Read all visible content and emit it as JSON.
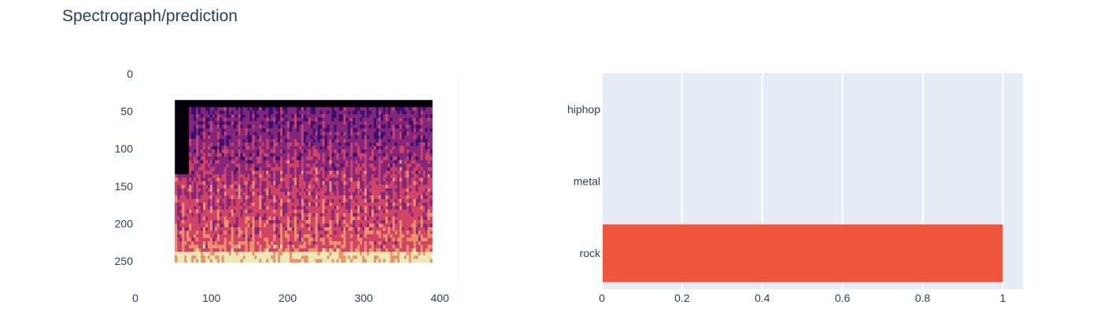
{
  "title": "Spectrograph/prediction",
  "chart_data": [
    {
      "type": "heatmap",
      "description_of_content": "",
      "xlim": [
        0,
        400
      ],
      "ylim": [
        0,
        275
      ],
      "x_ticks": [
        "0",
        "100",
        "200",
        "300",
        "400"
      ],
      "y_ticks": [
        "0",
        "50",
        "100",
        "150",
        "200",
        "250"
      ],
      "image_extent": {
        "x": [
          52,
          390
        ],
        "y": [
          35,
          252
        ]
      },
      "colormap": [
        "#000004",
        "#3b0f70",
        "#8c2981",
        "#de4968",
        "#fe9f6d",
        "#fcfdbf"
      ]
    },
    {
      "type": "bar",
      "orientation": "horizontal",
      "categories": [
        "rock",
        "metal",
        "hiphop"
      ],
      "values": [
        1.0,
        0.0,
        0.0
      ],
      "xlim": [
        0,
        1.05
      ],
      "x_ticks": [
        "0",
        "0.2",
        "0.4",
        "0.6",
        "0.8",
        "1"
      ],
      "bar_color": "#ef553b",
      "plot_background": "#e5ecf6",
      "grid": true
    }
  ]
}
